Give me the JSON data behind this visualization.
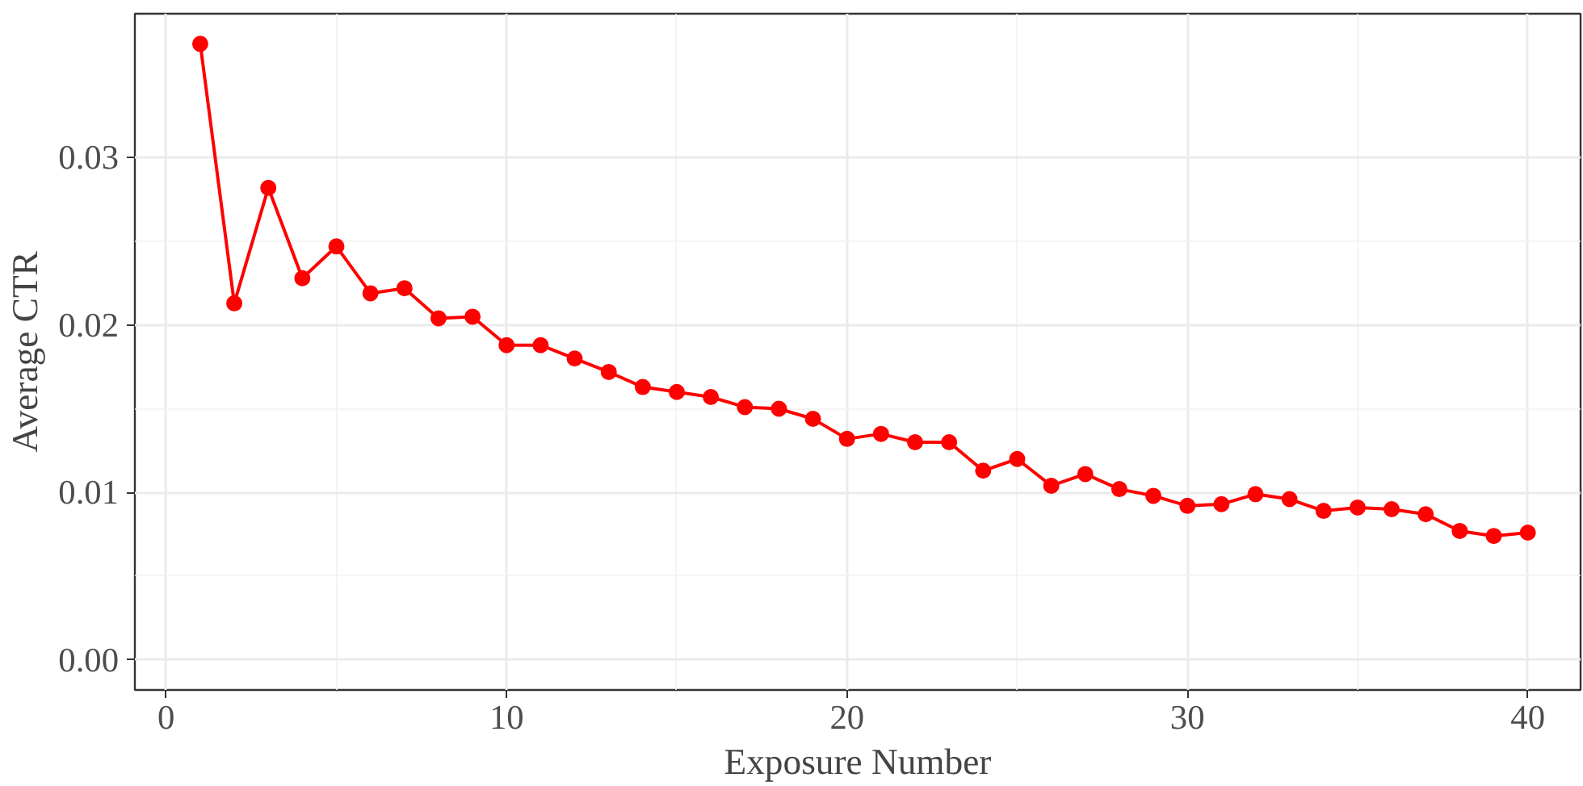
{
  "chart_data": {
    "type": "line",
    "xlabel": "Exposure Number",
    "ylabel": "Average CTR",
    "x": [
      1,
      2,
      3,
      4,
      5,
      6,
      7,
      8,
      9,
      10,
      11,
      12,
      13,
      14,
      15,
      16,
      17,
      18,
      19,
      20,
      21,
      22,
      23,
      24,
      25,
      26,
      27,
      28,
      29,
      30,
      31,
      32,
      33,
      34,
      35,
      36,
      37,
      38,
      39,
      40
    ],
    "series": [
      {
        "color": "#ff0000",
        "values": [
          0.0368,
          0.0213,
          0.0282,
          0.0228,
          0.0247,
          0.0219,
          0.0222,
          0.0204,
          0.0205,
          0.0188,
          0.0188,
          0.018,
          0.0172,
          0.0163,
          0.016,
          0.0157,
          0.0151,
          0.015,
          0.0144,
          0.0132,
          0.0135,
          0.013,
          0.013,
          0.0113,
          0.012,
          0.0104,
          0.0111,
          0.0102,
          0.0098,
          0.0092,
          0.0093,
          0.0099,
          0.0096,
          0.0089,
          0.0091,
          0.009,
          0.0087,
          0.0077,
          0.0074,
          0.0076
        ]
      }
    ],
    "xlim": [
      -0.92,
      41.55
    ],
    "ylim": [
      -0.0018,
      0.0386
    ],
    "xticks": [
      0,
      10,
      20,
      30,
      40
    ],
    "yticks": [
      {
        "value": 0,
        "label": "0.00"
      },
      {
        "value": 0.01,
        "label": "0.01"
      },
      {
        "value": 0.02,
        "label": "0.02"
      },
      {
        "value": 0.03,
        "label": "0.03"
      }
    ],
    "grid": true,
    "marker": "circle",
    "line_style": "solid"
  }
}
